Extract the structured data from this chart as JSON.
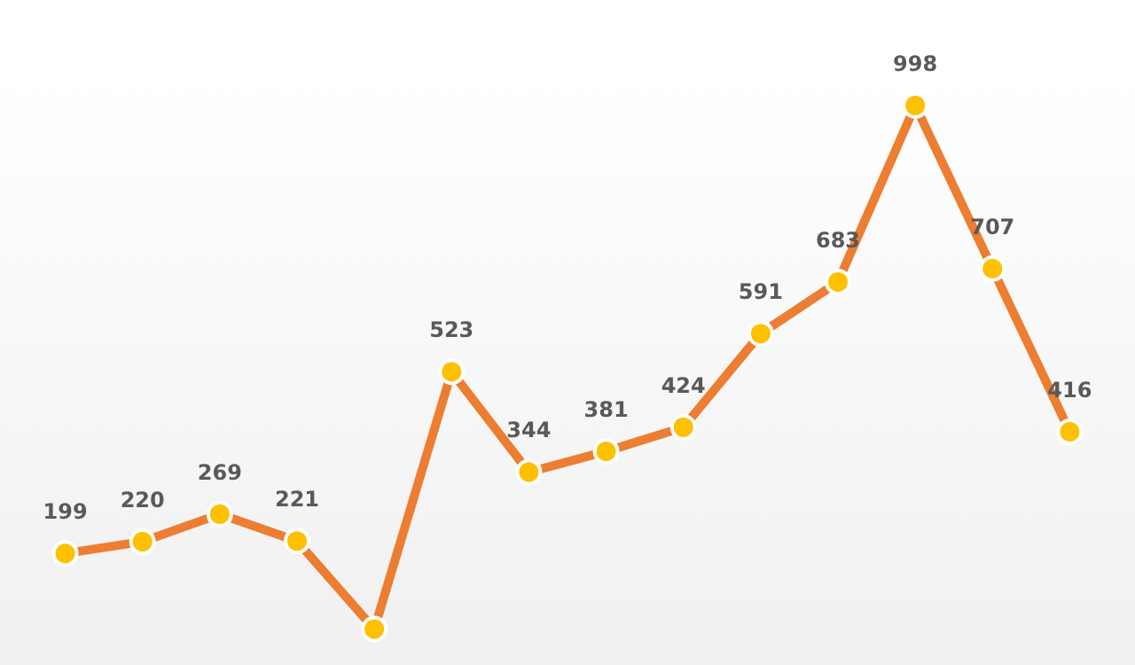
{
  "chart_data": {
    "type": "line",
    "categories": [
      null,
      null,
      null,
      null,
      null,
      null,
      null,
      null,
      null,
      null,
      null,
      null,
      null,
      null
    ],
    "series": [
      {
        "color": "#ed7d31",
        "values": [
          199,
          220,
          269,
          221,
          64,
          523,
          344,
          381,
          424,
          591,
          683,
          998,
          707,
          416
        ],
        "value_labels": [
          "199",
          "220",
          "269",
          "221",
          null,
          "523",
          "344",
          "381",
          "424",
          "591",
          "683",
          "998",
          "707",
          "416"
        ]
      }
    ],
    "ylim": [
      0,
      1186
    ],
    "marker": "circle",
    "line_style": "solid",
    "grid": false
  }
}
